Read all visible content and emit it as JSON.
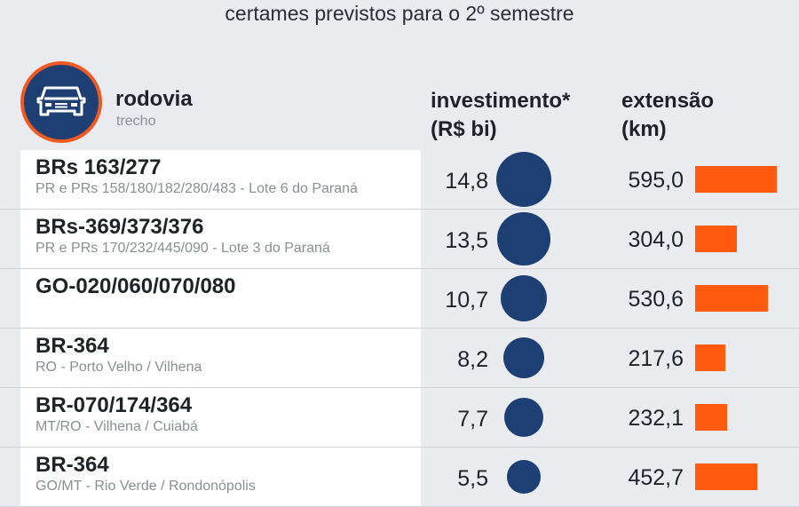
{
  "subtitle": "certames previstos para o 2º semestre",
  "header": {
    "col_rodovia": "rodovia",
    "col_trecho": "trecho",
    "col_investimento_line1": "investimento*",
    "col_investimento_line2": "(R$ bi)",
    "col_extensao_line1": "extensão",
    "col_extensao_line2": "(km)",
    "icon": "car-icon"
  },
  "colors": {
    "bubble": "#1e3f73",
    "bar": "#ff5a0d",
    "icon_ring": "#f05a22"
  },
  "rows": [
    {
      "name": "BRs 163/277",
      "trecho": "PR e PRs 158/180/182/280/483 - Lote 6 do Paraná",
      "investimento": "14,8",
      "extensao": "595,0"
    },
    {
      "name": "BRs-369/373/376",
      "trecho": "PR e PRs 170/232/445/090 - Lote 3 do Paraná",
      "investimento": "13,5",
      "extensao": "304,0"
    },
    {
      "name": "GO-020/060/070/080",
      "trecho": "",
      "investimento": "10,7",
      "extensao": "530,6"
    },
    {
      "name": "BR-364",
      "trecho": "RO - Porto Velho / Vilhena",
      "investimento": "8,2",
      "extensao": "217,6"
    },
    {
      "name": "BR-070/174/364",
      "trecho": "MT/RO - Vilhena / Cuiabá",
      "investimento": "7,7",
      "extensao": "232,1"
    },
    {
      "name": "BR-364",
      "trecho": "GO/MT - Rio Verde / Rondonópolis",
      "investimento": "5,5",
      "extensao": "452,7"
    }
  ],
  "chart_data": {
    "type": "table",
    "columns": [
      "rodovia",
      "trecho",
      "investimento* (R$ bi)",
      "extensão (km)"
    ],
    "categories": [
      "BRs 163/277",
      "BRs-369/373/376",
      "GO-020/060/070/080",
      "BR-364",
      "BR-070/174/364",
      "BR-364"
    ],
    "series": [
      {
        "name": "investimento* (R$ bi)",
        "values": [
          14.8,
          13.5,
          10.7,
          8.2,
          7.7,
          5.5
        ]
      },
      {
        "name": "extensão (km)",
        "values": [
          595.0,
          304.0,
          530.6,
          217.6,
          232.1,
          452.7
        ]
      }
    ]
  }
}
